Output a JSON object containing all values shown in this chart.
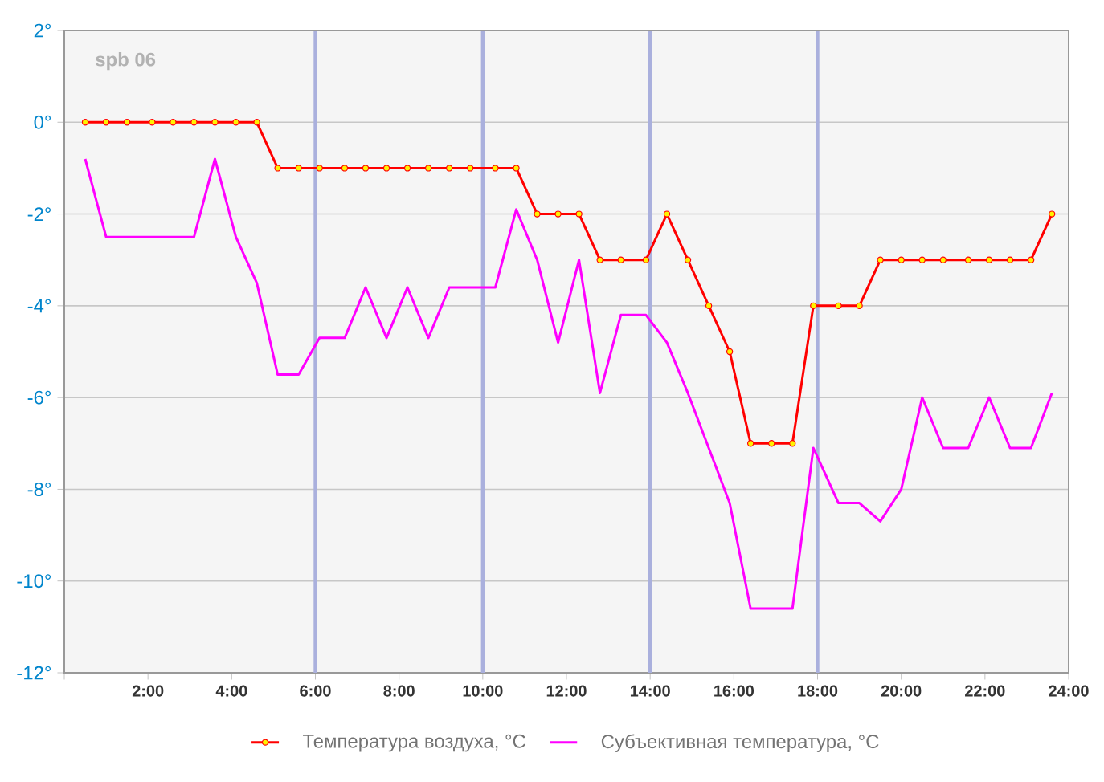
{
  "chart_data": {
    "type": "line",
    "annotations": [
      "spb 06"
    ],
    "x": [
      0.5,
      1.0,
      1.5,
      2.1,
      2.6,
      3.1,
      3.6,
      4.1,
      4.6,
      5.1,
      5.6,
      6.1,
      6.7,
      7.2,
      7.7,
      8.2,
      8.7,
      9.2,
      9.7,
      10.3,
      10.8,
      11.3,
      11.8,
      12.3,
      12.8,
      13.3,
      13.9,
      14.4,
      14.9,
      15.4,
      15.9,
      16.4,
      16.9,
      17.4,
      17.9,
      18.5,
      19.0,
      19.5,
      20.0,
      20.5,
      21.0,
      21.6,
      22.1,
      22.6,
      23.1,
      23.6
    ],
    "series": [
      {
        "name": "Температура воздуха, °C",
        "color": "#ff0000",
        "marker": "circle",
        "values": [
          0,
          0,
          0,
          0,
          0,
          0,
          0,
          0,
          0,
          -1,
          -1,
          -1,
          -1,
          -1,
          -1,
          -1,
          -1,
          -1,
          -1,
          -1,
          -1,
          -2,
          -2,
          -2,
          -3,
          -3,
          -3,
          -2,
          -3,
          -4,
          -5,
          -7,
          -7,
          -7,
          -4,
          -4,
          -4,
          -3,
          -3,
          -3,
          -3,
          -3,
          -3,
          -3,
          -3,
          -2
        ]
      },
      {
        "name": "Субъективная температура, °C",
        "color": "#ff00ff",
        "marker": "none",
        "values": [
          -0.8,
          -2.5,
          -2.5,
          -2.5,
          -2.5,
          -2.5,
          -0.8,
          -2.5,
          -3.5,
          -5.5,
          -5.5,
          -4.7,
          -4.7,
          -3.6,
          -4.7,
          -3.6,
          -4.7,
          -3.6,
          -3.6,
          -3.6,
          -1.9,
          -3.0,
          -4.8,
          -3.0,
          -5.9,
          -4.2,
          -4.2,
          -4.8,
          -5.9,
          -7.1,
          -8.3,
          -10.6,
          -10.6,
          -10.6,
          -7.1,
          -8.3,
          -8.3,
          -8.7,
          -8.0,
          -6.0,
          -7.1,
          -7.1,
          -6.0,
          -7.1,
          -7.1,
          -5.9
        ]
      }
    ],
    "xlim": [
      0,
      24
    ],
    "xticks": [
      {
        "value": 0,
        "label": null
      },
      {
        "value": 2,
        "label": "2:00"
      },
      {
        "value": 4,
        "label": "4:00"
      },
      {
        "value": 6,
        "label": "6:00"
      },
      {
        "value": 8,
        "label": "8:00"
      },
      {
        "value": 10,
        "label": "10:00"
      },
      {
        "value": 12,
        "label": "12:00"
      },
      {
        "value": 14,
        "label": "14:00"
      },
      {
        "value": 16,
        "label": "16:00"
      },
      {
        "value": 18,
        "label": "18:00"
      },
      {
        "value": 20,
        "label": "20:00"
      },
      {
        "value": 22,
        "label": "22:00"
      },
      {
        "value": 24,
        "label": "24:00"
      }
    ],
    "ylim": [
      -12,
      2
    ],
    "yticks": [
      {
        "value": -12,
        "label": "-12°"
      },
      {
        "value": -10,
        "label": "-10°"
      },
      {
        "value": -8,
        "label": "-8°"
      },
      {
        "value": -6,
        "label": "-6°"
      },
      {
        "value": -4,
        "label": "-4°"
      },
      {
        "value": -2,
        "label": "-2°"
      },
      {
        "value": 0,
        "label": "0°"
      },
      {
        "value": 2,
        "label": "2°"
      }
    ],
    "ref_lines": [
      {
        "axis": "x",
        "value": 6,
        "color": "#aab0dd"
      },
      {
        "axis": "x",
        "value": 10,
        "color": "#aab0dd"
      },
      {
        "axis": "x",
        "value": 14,
        "color": "#aab0dd"
      },
      {
        "axis": "x",
        "value": 18,
        "color": "#aab0dd"
      }
    ],
    "grid": "y",
    "legend": "bottom"
  }
}
